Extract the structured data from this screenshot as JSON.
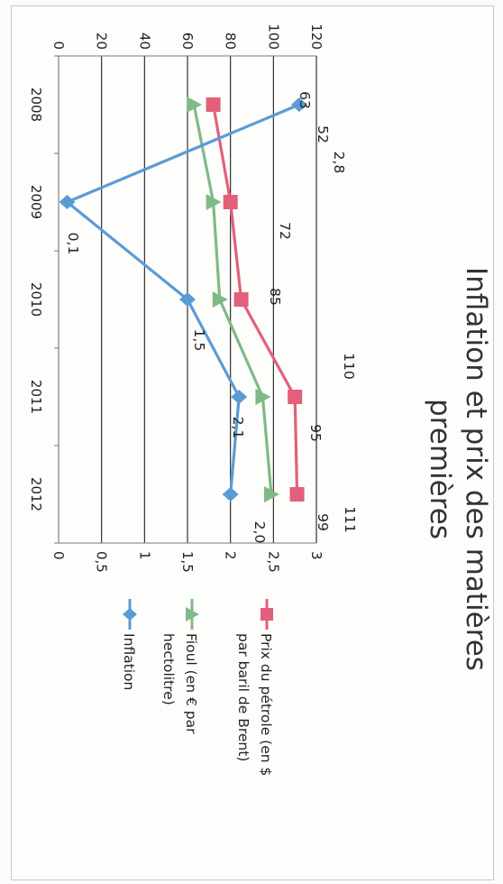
{
  "chart_data": {
    "type": "line",
    "title": "Inflation et prix des matières premières",
    "title_lines": [
      "Inflation et prix des matières",
      "premières"
    ],
    "categories": [
      "2008",
      "2009",
      "2010",
      "2011",
      "2012"
    ],
    "y_left": {
      "ylim": [
        0,
        120
      ],
      "ticks": [
        "0",
        "20",
        "40",
        "60",
        "80",
        "100",
        "120"
      ]
    },
    "y_right": {
      "ylim": [
        0,
        3
      ],
      "ticks": [
        "0",
        "0,5",
        "1",
        "1,5",
        "2",
        "2,5",
        "3"
      ]
    },
    "series": [
      {
        "name": "Prix du pétrole (en $ par baril de Brent)",
        "legend_lines": [
          "Prix du pétrole (en $",
          "par baril de Brent)"
        ],
        "axis": "left",
        "color": "#e2607a",
        "marker": "square",
        "values": [
          72,
          80,
          85,
          110,
          111
        ],
        "labels": [
          "",
          "",
          "85",
          "110",
          "111"
        ]
      },
      {
        "name": "Fioul (en € par hectolitre)",
        "legend_lines": [
          "Fioul (en € par",
          "hectolitre)"
        ],
        "axis": "left",
        "color": "#7fba86",
        "marker": "triangle",
        "values": [
          63,
          72,
          75,
          95,
          99
        ],
        "labels": [
          "63",
          "72",
          "",
          "95",
          "99"
        ]
      },
      {
        "name": "Inflation",
        "legend_lines": [
          "Inflation"
        ],
        "axis": "right",
        "color": "#5b9bd5",
        "marker": "diamond",
        "values": [
          2.8,
          0.1,
          1.5,
          2.1,
          2.0
        ],
        "labels": [
          "2,8",
          "0,1",
          "1,5",
          "2,1",
          "2,0"
        ]
      }
    ],
    "extra_labels": [
      "52"
    ],
    "legend_position": "right",
    "grid": true
  }
}
